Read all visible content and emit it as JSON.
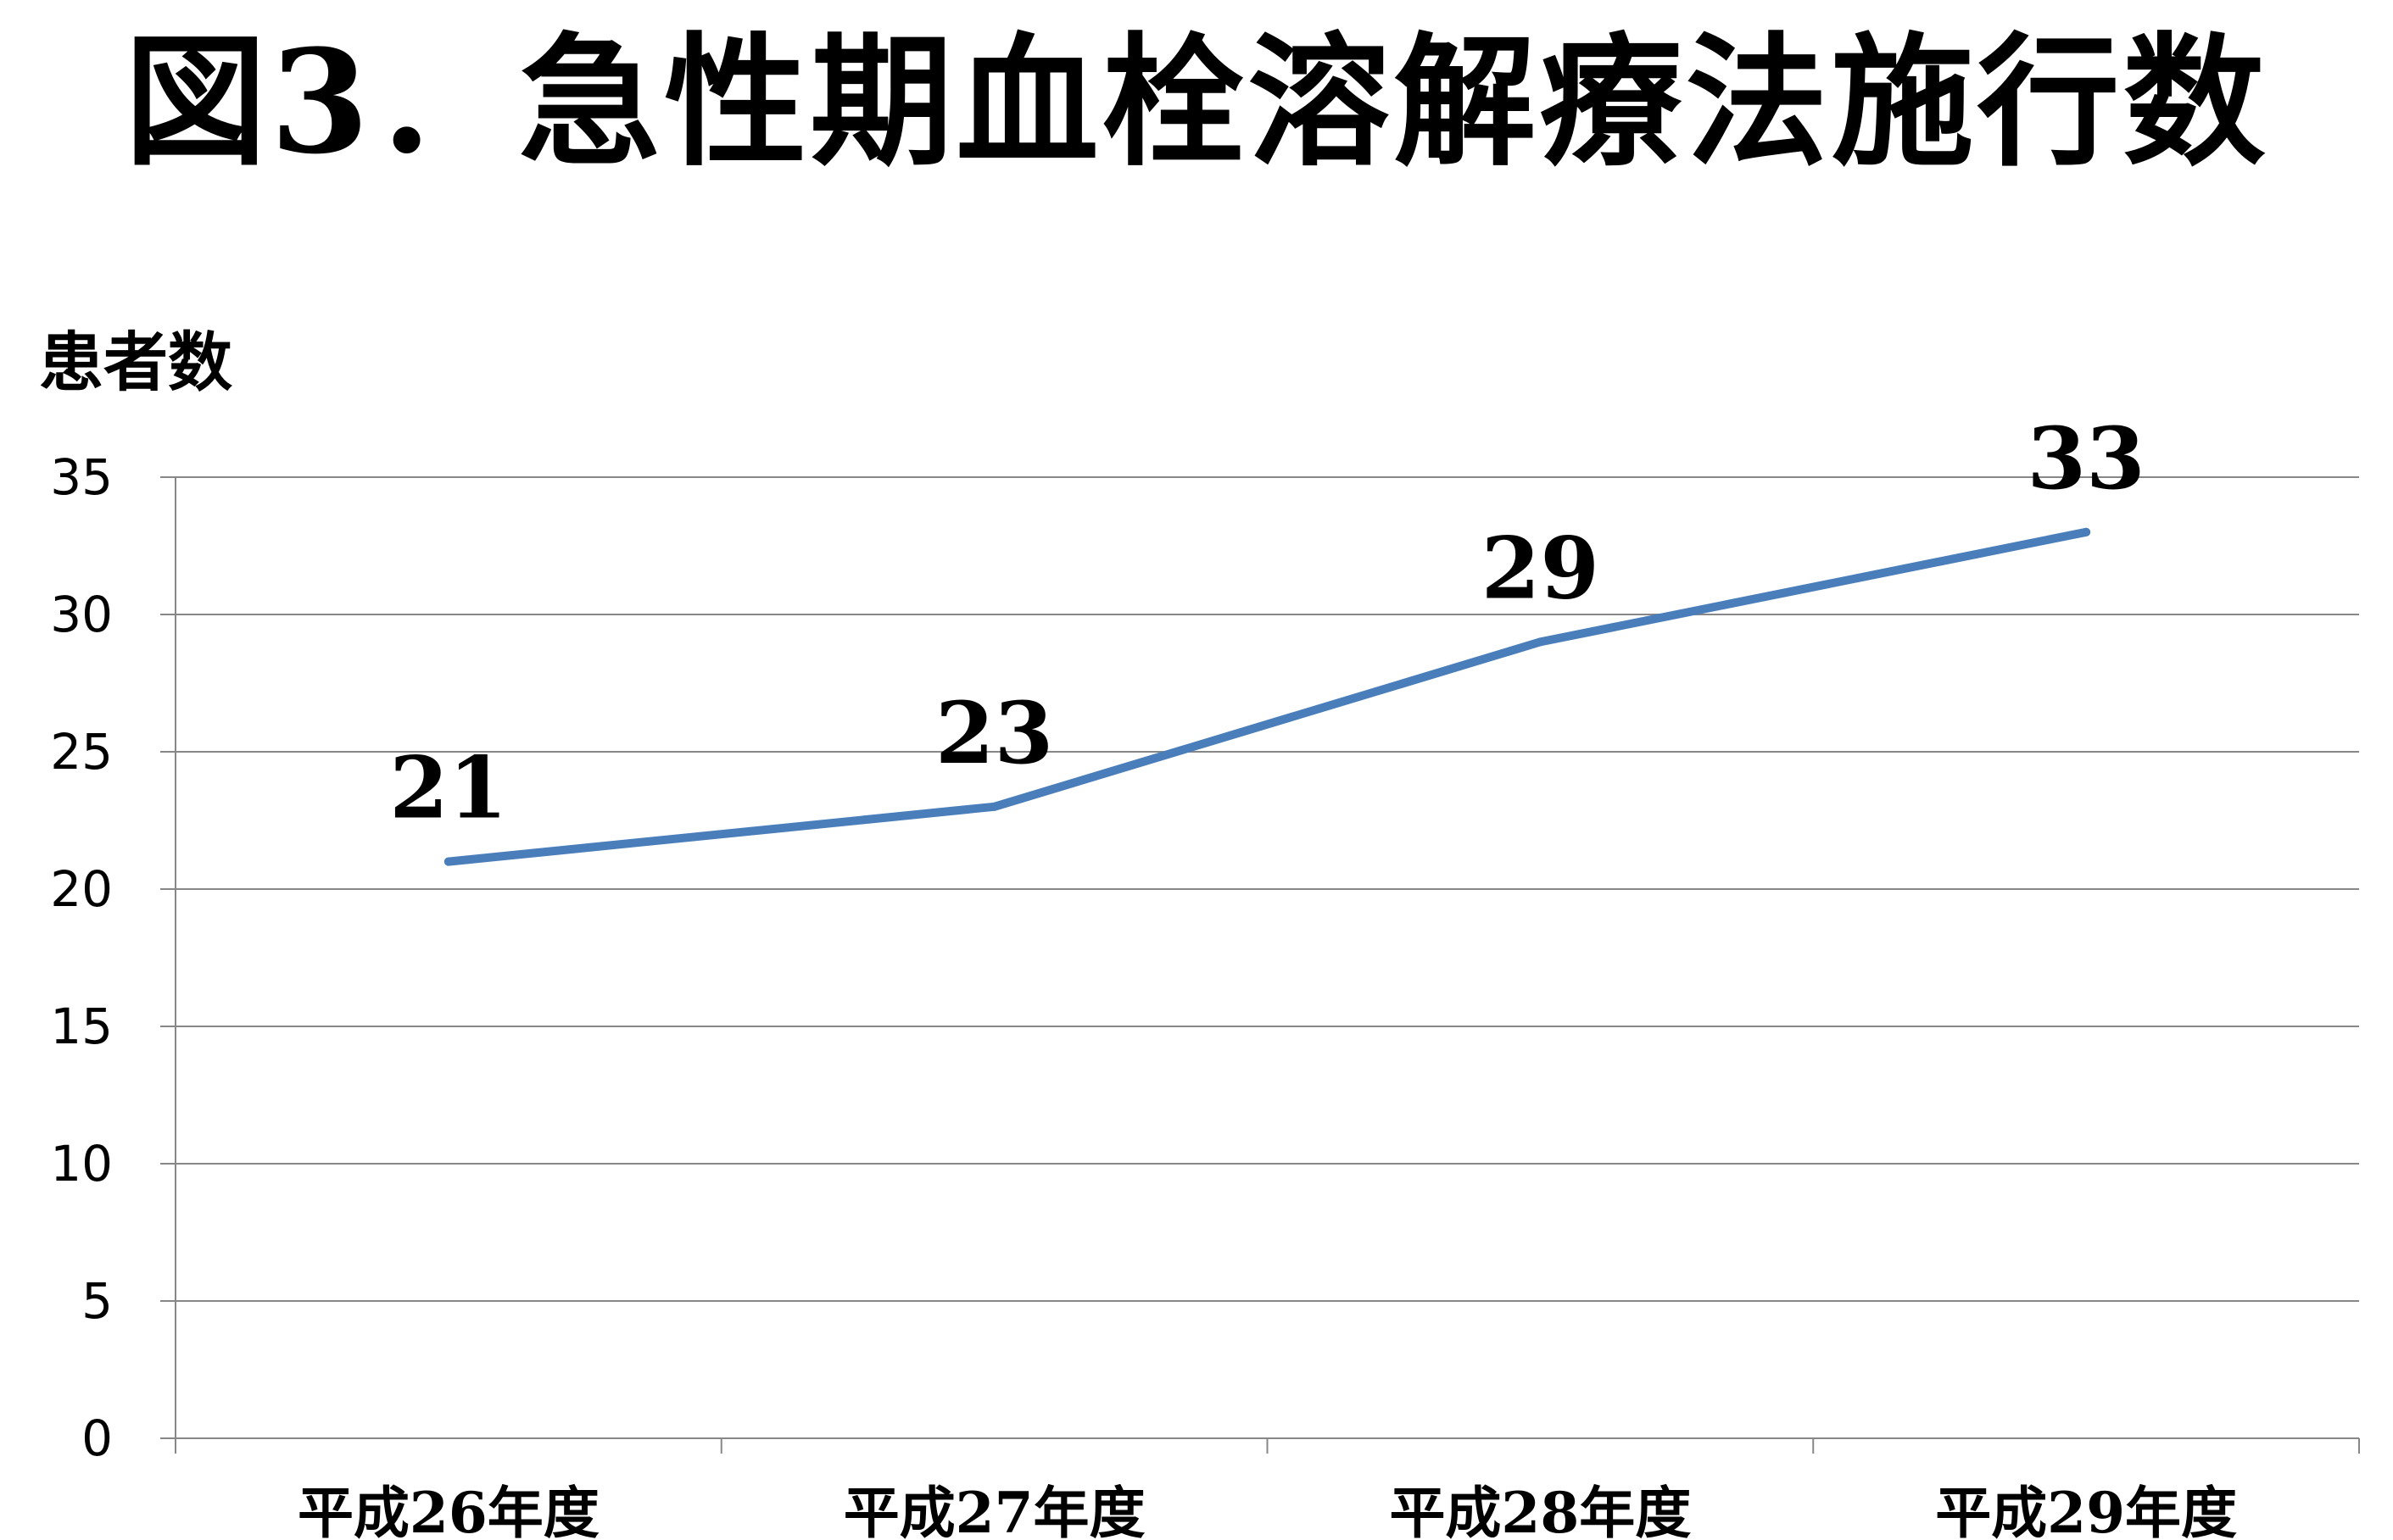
{
  "chart_data": {
    "type": "line",
    "title": "図3．急性期血栓溶解療法施行数",
    "ylabel": "患者数",
    "xlabel": "",
    "categories": [
      "平成26年度",
      "平成27年度",
      "平成28年度",
      "平成29年度"
    ],
    "series": [
      {
        "values": [
          21,
          23,
          29,
          33
        ],
        "color": "#4a7ebb"
      }
    ],
    "data_labels": [
      "21",
      "23",
      "29",
      "33"
    ],
    "ylim": [
      0,
      35
    ],
    "yticks": [
      "0",
      "5",
      "10",
      "15",
      "20",
      "25",
      "30",
      "35"
    ],
    "grid": true,
    "legend": "none",
    "colors": {
      "line": "#4a7ebb",
      "gridline": "#878787",
      "axis": "#878787",
      "text": "#000000"
    }
  }
}
